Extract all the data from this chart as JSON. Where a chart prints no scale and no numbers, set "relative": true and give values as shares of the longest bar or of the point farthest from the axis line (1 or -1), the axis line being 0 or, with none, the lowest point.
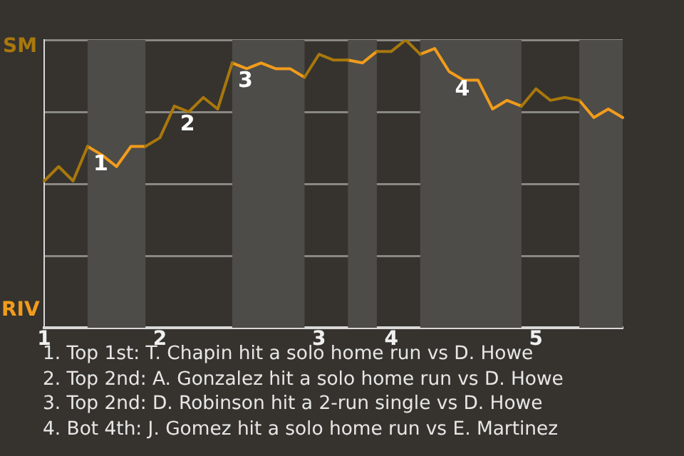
{
  "chart_data": {
    "type": "line",
    "relative": true,
    "categories": [
      "1",
      null,
      null,
      null,
      null,
      null,
      null,
      null,
      "2",
      null,
      null,
      null,
      null,
      null,
      null,
      null,
      null,
      null,
      null,
      "3",
      null,
      null,
      null,
      null,
      "4",
      null,
      null,
      null,
      null,
      null,
      null,
      null,
      null,
      null,
      "5",
      null,
      null,
      null,
      null,
      null,
      null
    ],
    "series": [
      {
        "color": "#a8780c",
        "values": [
          0.51,
          0.56,
          0.51,
          0.63,
          null,
          null,
          null,
          0.63,
          0.66,
          0.77,
          0.75,
          0.8,
          0.76,
          0.92,
          null,
          null,
          null,
          null,
          0.87,
          0.95,
          0.93,
          0.93,
          null,
          0.96,
          0.96,
          1,
          0.95,
          null,
          null,
          null,
          null,
          null,
          null,
          0.77,
          0.83,
          0.79,
          0.8,
          0.79,
          null,
          null,
          null
        ]
      },
      {
        "color": "#f29c1c",
        "values": [
          null,
          null,
          null,
          0.63,
          0.6,
          0.56,
          0.63,
          0.63,
          null,
          null,
          null,
          null,
          null,
          0.92,
          0.9,
          0.92,
          0.9,
          0.9,
          0.87,
          null,
          null,
          0.93,
          0.92,
          0.96,
          null,
          null,
          0.95,
          0.97,
          0.89,
          0.86,
          0.86,
          0.76,
          0.79,
          0.77,
          null,
          null,
          null,
          0.79,
          0.73,
          0.76,
          0.73
        ]
      }
    ],
    "grid": "y",
    "marker": "none",
    "line_style": "solid",
    "annotations": [
      "SM",
      "RIV",
      {
        "text": "1",
        "y": 0.63
      },
      {
        "text": "2",
        "y": 0.77
      },
      {
        "text": "3",
        "y": 0.92
      },
      {
        "text": "4",
        "y": 0.89
      },
      "1. Top 1st: T. Chapin hit a solo home run vs D. Howe",
      "2. Top 2nd: A. Gonzalez hit a solo home run vs D. Howe",
      "3. Top 2nd: D. Robinson hit a 2-run single vs D. Howe",
      "4. Bot 4th: J. Gomez hit a solo home run vs E. Martinez"
    ]
  }
}
